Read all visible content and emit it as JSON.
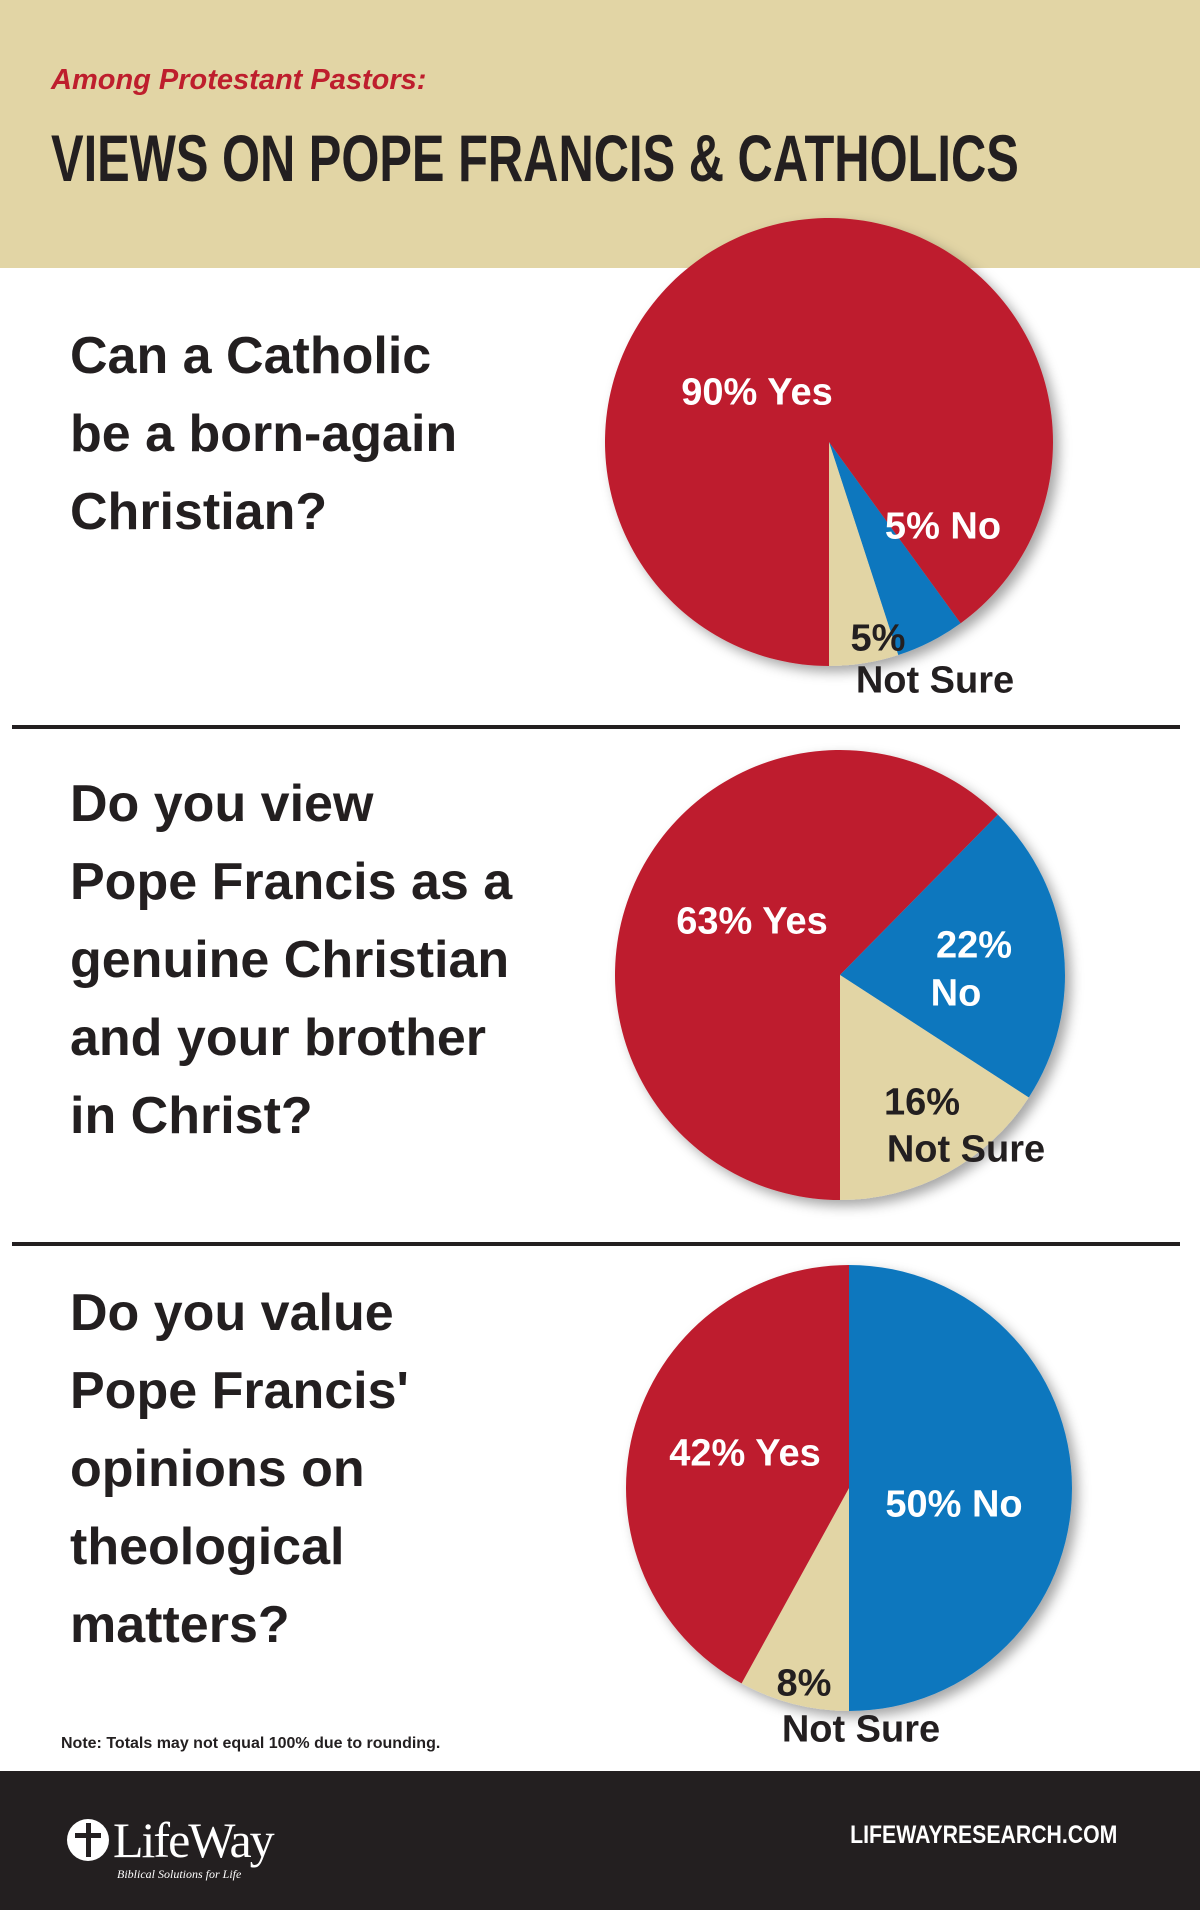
{
  "header": {
    "subtitle": "Among Protestant Pastors:",
    "title": "VIEWS ON POPE FRANCIS & CATHOLICS"
  },
  "questions": [
    {
      "lines": [
        "Can a Catholic",
        "be a born-again",
        "Christian?"
      ]
    },
    {
      "lines": [
        "Do you view",
        "Pope Francis as a",
        "genuine Christian",
        "and your brother",
        "in Christ?"
      ]
    },
    {
      "lines": [
        "Do you value",
        "Pope Francis'",
        "opinions on",
        "theological",
        "matters?"
      ]
    }
  ],
  "colors": {
    "yes": "#be1e2d",
    "no": "#1177be",
    "not_sure": "#e2d5a5",
    "dark": "#231f20"
  },
  "chart_data": [
    {
      "type": "pie",
      "title": "Can a Catholic be a born-again Christian?",
      "slices": [
        {
          "name": "Yes",
          "value": 90,
          "label": "90% Yes"
        },
        {
          "name": "No",
          "value": 5,
          "label": "5% No"
        },
        {
          "name": "Not Sure",
          "value": 5,
          "label_pct": "5%",
          "label_text": "Not Sure"
        }
      ]
    },
    {
      "type": "pie",
      "title": "Do you view Pope Francis as a genuine Christian and your brother in Christ?",
      "slices": [
        {
          "name": "Yes",
          "value": 63,
          "label": "63% Yes"
        },
        {
          "name": "No",
          "value": 22,
          "label_pct": "22%",
          "label_text": "No"
        },
        {
          "name": "Not Sure",
          "value": 16,
          "label_pct": "16%",
          "label_text": "Not Sure"
        }
      ]
    },
    {
      "type": "pie",
      "title": "Do you value Pope Francis' opinions on theological matters?",
      "slices": [
        {
          "name": "Yes",
          "value": 42,
          "label": "42% Yes"
        },
        {
          "name": "No",
          "value": 50,
          "label": "50% No"
        },
        {
          "name": "Not Sure",
          "value": 8,
          "label_pct": "8%",
          "label_text": "Not Sure"
        }
      ]
    }
  ],
  "note": "Note: Totals may not equal 100% due to rounding.",
  "footer": {
    "logo_name": "LifeWay",
    "logo_tagline": "Biblical Solutions for Life",
    "url": "LIFEWAYRESEARCH.COM"
  }
}
